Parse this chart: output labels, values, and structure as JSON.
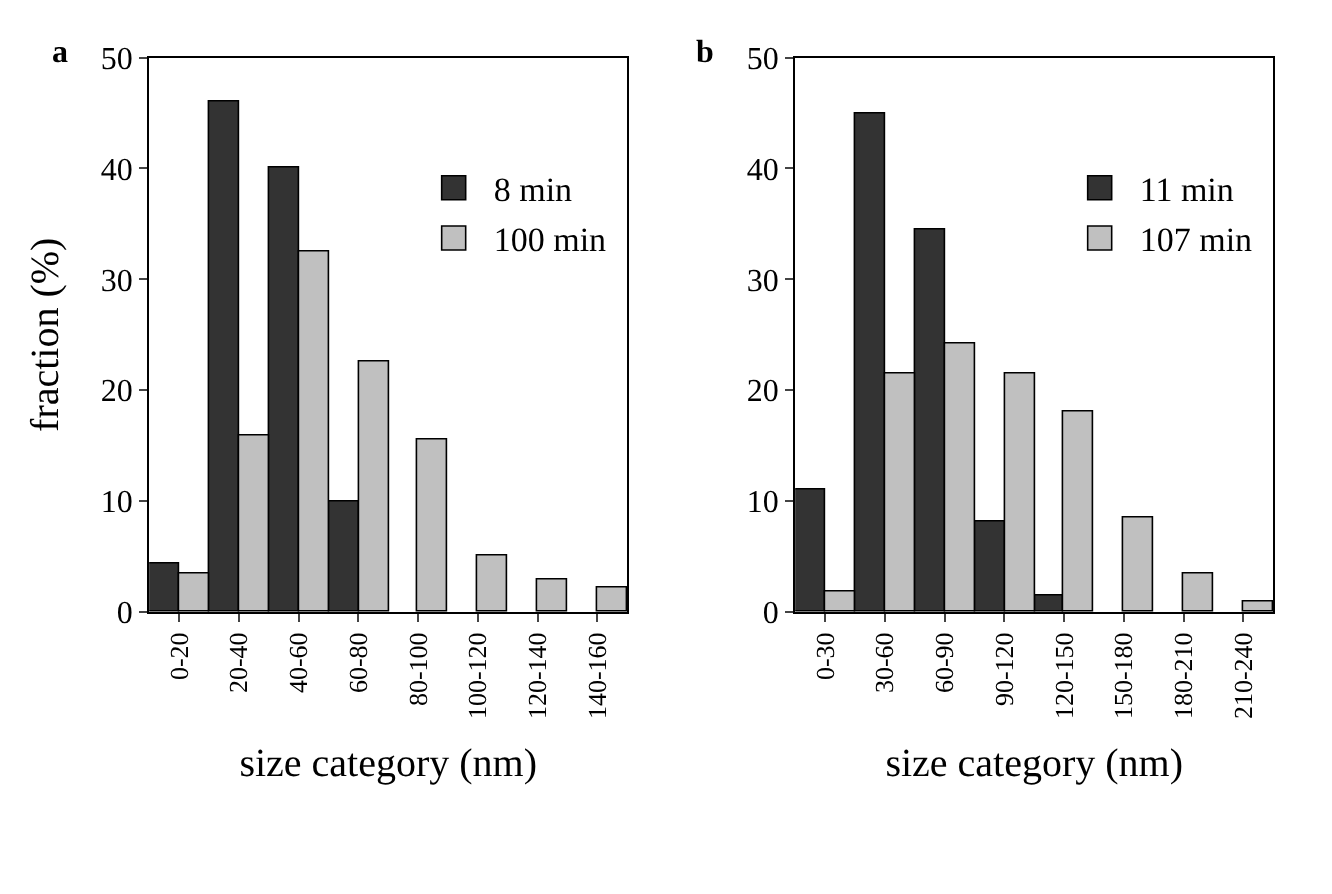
{
  "chart_data": [
    {
      "type": "bar",
      "xlabel": "size category (nm)",
      "ylabel": "fraction (%)",
      "annotations": [
        "a"
      ],
      "categories": [
        "0-20",
        "20-40",
        "40-60",
        "60-80",
        "80-100",
        "100-120",
        "120-140",
        "140-160"
      ],
      "ylim": [
        0,
        50
      ],
      "yticks": [
        0,
        10,
        20,
        30,
        40,
        50
      ],
      "legend": "top right",
      "series": [
        {
          "name": "8 min",
          "color": "#333333",
          "values": [
            4.3,
            46,
            40,
            10,
            null,
            null,
            null,
            null
          ]
        },
        {
          "name": "100 min",
          "color": "#c0c0c0",
          "values": [
            3.5,
            16,
            32.5,
            22.5,
            15.5,
            5,
            3,
            2.2
          ]
        }
      ]
    },
    {
      "type": "bar",
      "xlabel": "size category (nm)",
      "annotations": [
        "b"
      ],
      "categories": [
        "0-30",
        "30-60",
        "60-90",
        "90-120",
        "120-150",
        "150-180",
        "180-210",
        "210-240"
      ],
      "ylim": [
        0,
        50
      ],
      "yticks": [
        0,
        10,
        20,
        30,
        40,
        50
      ],
      "legend": "top right",
      "series": [
        {
          "name": "11 min",
          "color": "#333333",
          "values": [
            11,
            45,
            34.5,
            8.2,
            1.5,
            null,
            null,
            null
          ]
        },
        {
          "name": "107 min",
          "color": "#c0c0c0",
          "values": [
            1.8,
            21.5,
            24.2,
            21.5,
            18,
            8.6,
            3.5,
            1
          ]
        }
      ]
    }
  ]
}
